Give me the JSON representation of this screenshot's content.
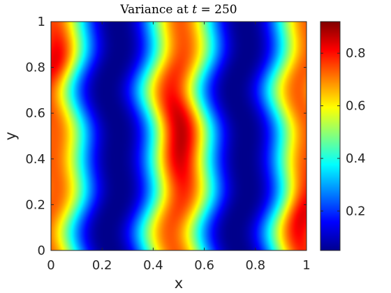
{
  "chart_data": {
    "type": "heatmap",
    "title": "Variance at t = 250",
    "title_prefix": "Variance at ",
    "title_var": "t",
    "title_rest": " = 250",
    "xlabel": "x",
    "ylabel": "y",
    "xlim": [
      0,
      1
    ],
    "ylim": [
      0,
      1
    ],
    "x_ticks": [
      "0",
      "0.2",
      "0.4",
      "0.6",
      "0.8",
      "1"
    ],
    "y_ticks": [
      "0",
      "0.2",
      "0.4",
      "0.6",
      "0.8",
      "1"
    ],
    "colorbar": {
      "colormap": "jet",
      "range": [
        0.05,
        0.92
      ],
      "ticks": [
        "0.2",
        "0.4",
        "0.6",
        "0.8"
      ],
      "tick_values": [
        0.2,
        0.4,
        0.6,
        0.8
      ]
    },
    "field_description": "vertical stripes of high variance near x = 0, 0.5 and 1, low variance near x = 0.25 and 0.75",
    "peaks": [
      {
        "x": 0.05,
        "y": 0.8,
        "value": 0.9
      },
      {
        "x": 0.5,
        "y": 0.55,
        "value": 0.92
      },
      {
        "x": 0.98,
        "y": 0.15,
        "value": 0.88
      }
    ],
    "grid": false
  }
}
